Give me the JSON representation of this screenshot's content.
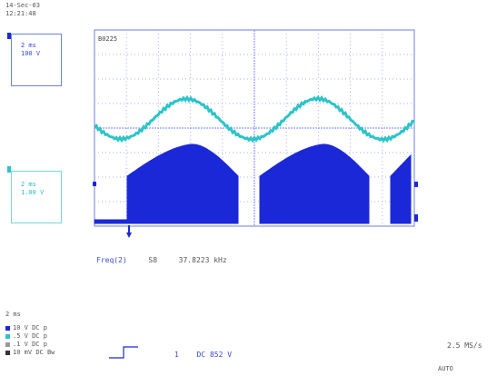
{
  "header": {
    "date": "14-Sec-03",
    "time": "12:21:48"
  },
  "channel_boxes": [
    {
      "time_div": "2 ms",
      "volt_div": "100 V"
    },
    {
      "time_div": "2 ms",
      "volt_div": "1.00 V"
    }
  ],
  "plot_label": "B0225",
  "measurement": {
    "label": "Freq(2)",
    "source": "S8",
    "value": "37.8223 kHz"
  },
  "footer": {
    "timebase": "2 ms",
    "channel_settings": [
      {
        "scale": "10",
        "unit": "V",
        "coupling": "DC"
      },
      {
        "scale": ".5",
        "unit": "V",
        "coupling": "DC"
      },
      {
        "scale": ".1",
        "unit": "V",
        "coupling": "DC"
      },
      {
        "scale": "10",
        "unit": "mV",
        "coupling": "DC"
      }
    ],
    "trigger": {
      "channel": "1",
      "mode": "DC",
      "level": "852 V"
    },
    "sample_rate": "2.5 MS/s",
    "acquisition_mode": "AUTO"
  },
  "colors": {
    "grid": "#8890ff",
    "cyan_trace": "#2cc4c8",
    "blue_trace": "#1b28d8",
    "box_border": "#6b7fe0"
  },
  "chart_data": {
    "type": "line",
    "divisions": {
      "x": 10,
      "y": 8
    },
    "series": [
      {
        "trace": "cyan",
        "shape": "sinusoid",
        "cycles_visible": 2.3
      },
      {
        "trace": "blue",
        "shape": "rectified pulses",
        "pulses_visible": 3
      }
    ]
  }
}
